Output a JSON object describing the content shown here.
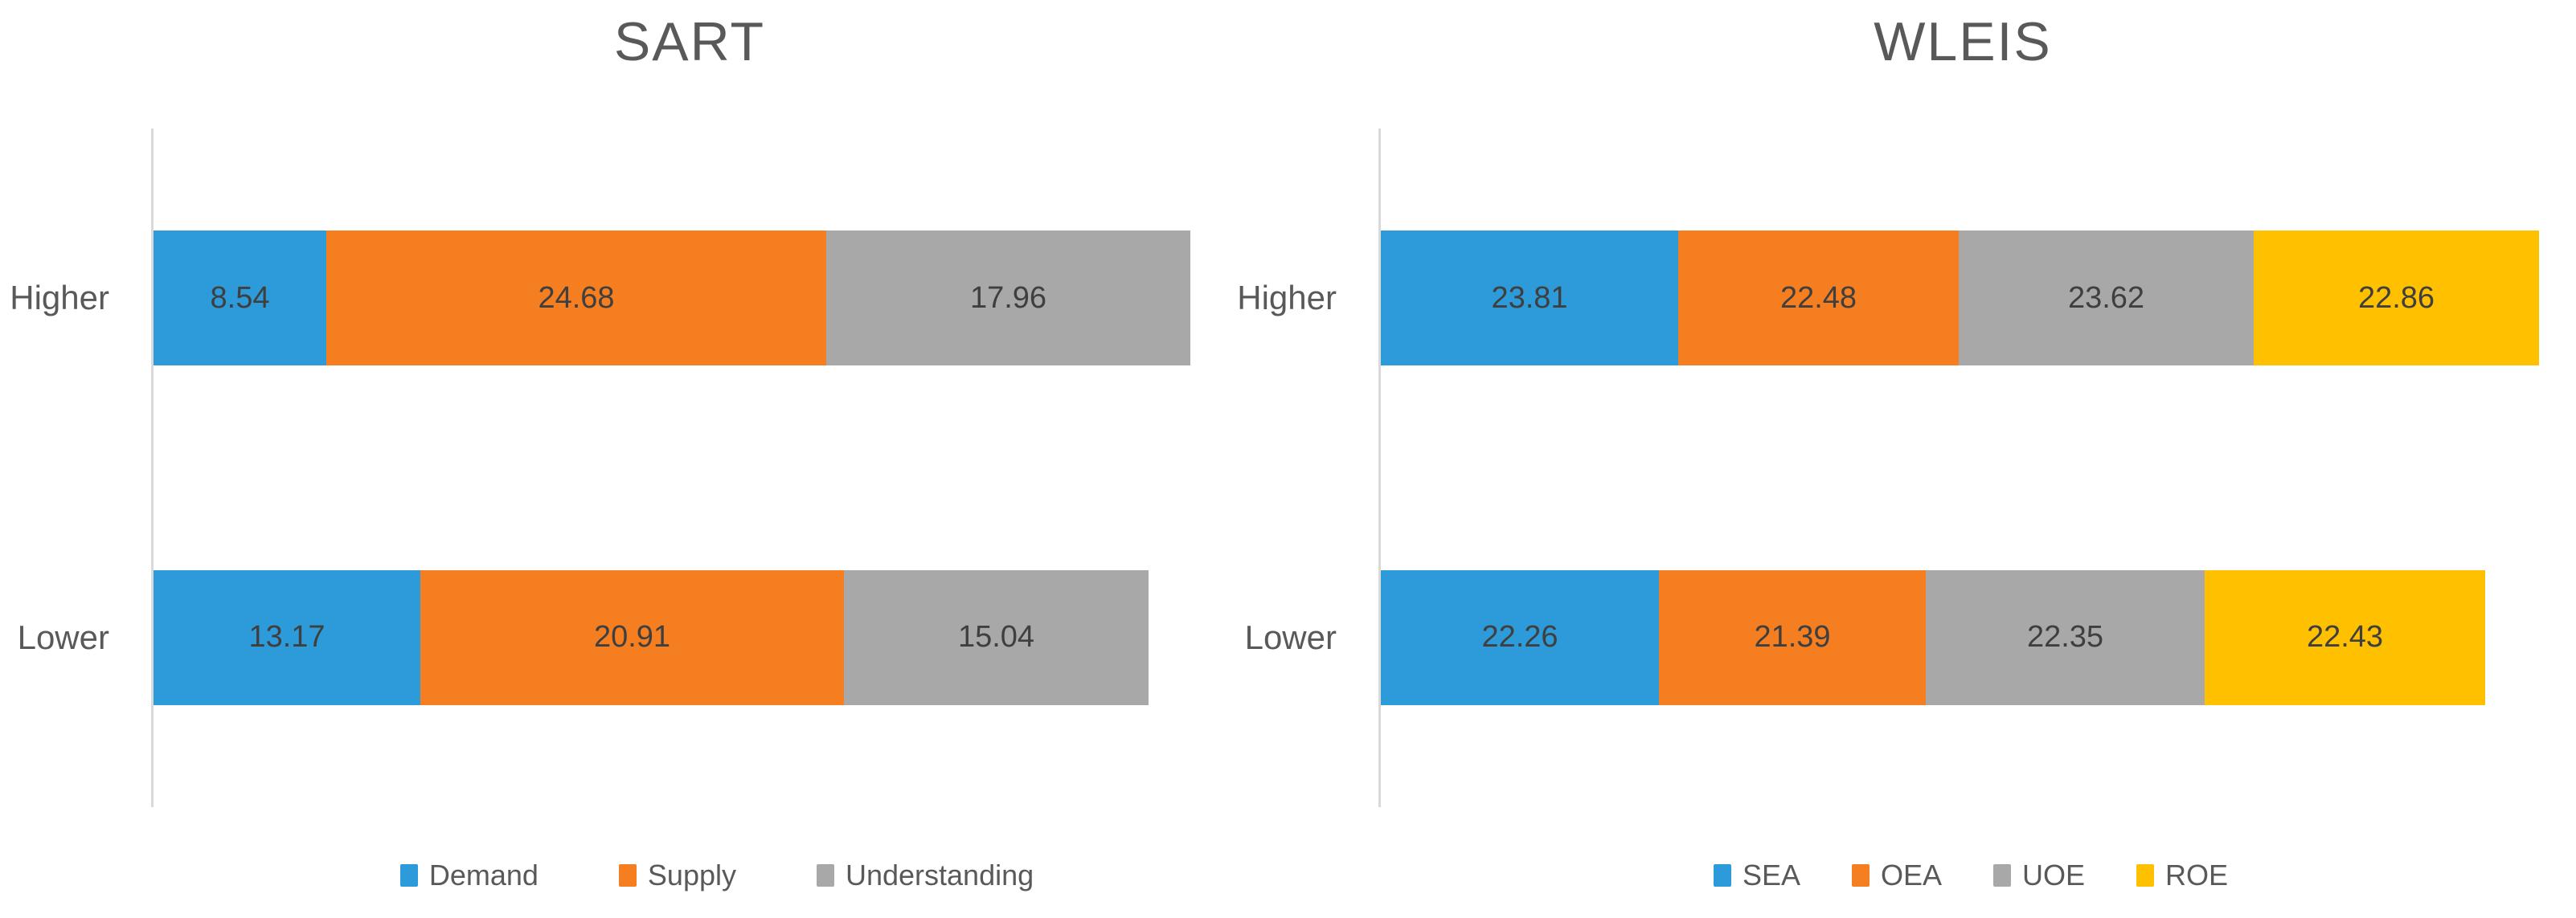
{
  "figure": {
    "background": "#ffffff",
    "text_color": "#595959",
    "data_label_color": "#3f3f3f",
    "axis_line_color": "#d9d9d9"
  },
  "chart_data": [
    {
      "type": "bar",
      "orientation": "horizontal-stacked",
      "title": "SART",
      "categories": [
        "Higher",
        "Lower"
      ],
      "series": [
        {
          "name": "Demand",
          "color": "#2d9ad9",
          "values": [
            8.54,
            13.17
          ]
        },
        {
          "name": "Supply",
          "color": "#f57e20",
          "values": [
            24.68,
            20.91
          ]
        },
        {
          "name": "Understanding",
          "color": "#a8a8a8",
          "values": [
            17.96,
            15.04
          ]
        }
      ],
      "data_labels_shown": true,
      "legend_position": "bottom",
      "gridlines": false,
      "value_axis_labels_shown": false
    },
    {
      "type": "bar",
      "orientation": "horizontal-stacked",
      "title": "WLEIS",
      "categories": [
        "Higher",
        "Lower"
      ],
      "series": [
        {
          "name": "SEA",
          "color": "#2d9ad9",
          "values": [
            23.81,
            22.26
          ]
        },
        {
          "name": "OEA",
          "color": "#f57e20",
          "values": [
            22.48,
            21.39
          ]
        },
        {
          "name": "UOE",
          "color": "#a8a8a8",
          "values": [
            23.62,
            22.35
          ]
        },
        {
          "name": "ROE",
          "color": "#ffc000",
          "values": [
            22.86,
            22.43
          ]
        }
      ],
      "data_labels_shown": true,
      "legend_position": "bottom",
      "gridlines": false,
      "value_axis_labels_shown": false
    }
  ]
}
